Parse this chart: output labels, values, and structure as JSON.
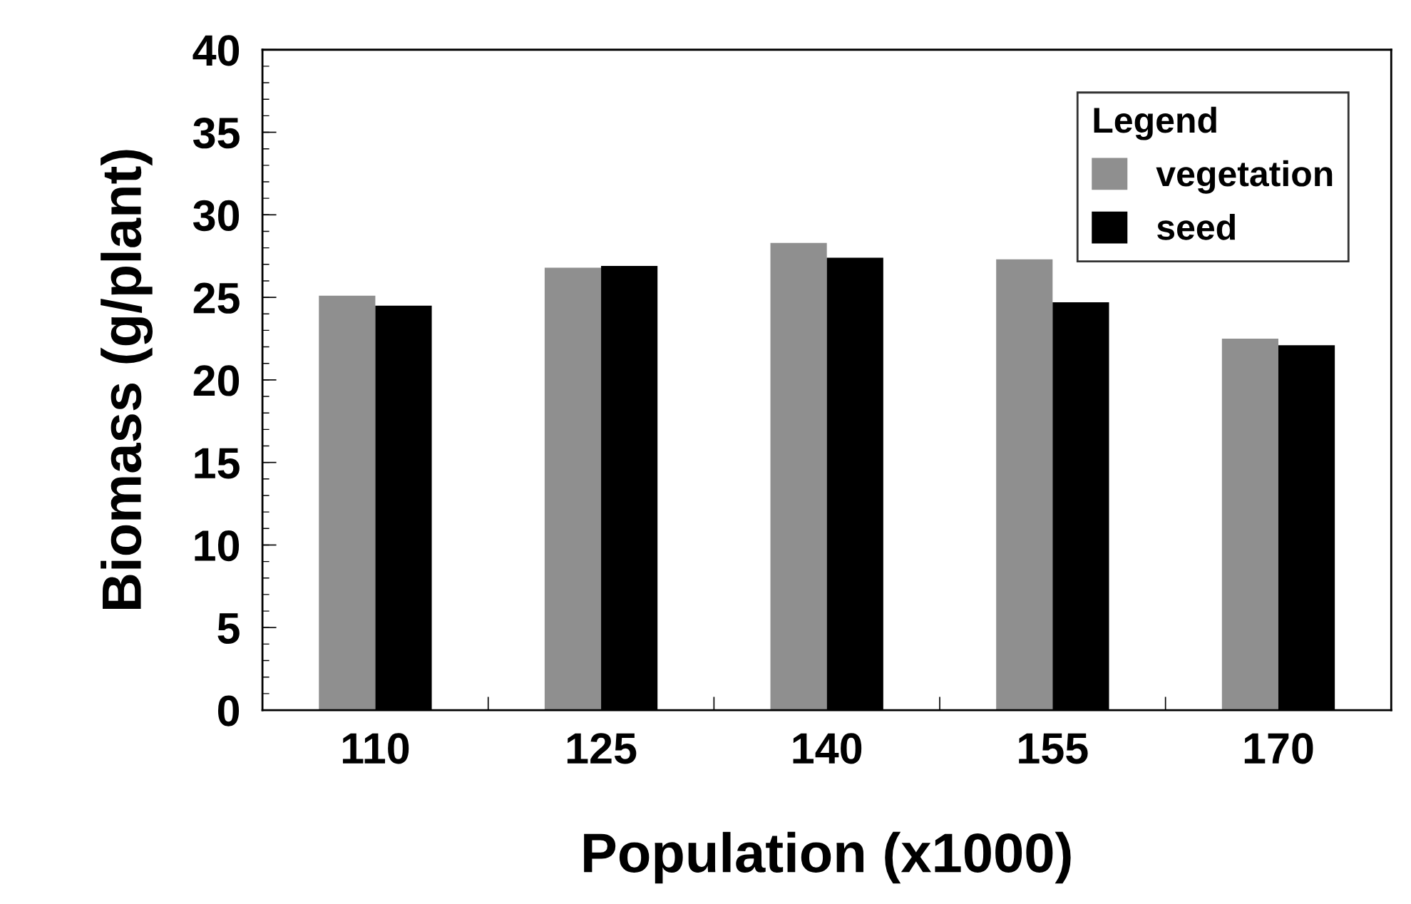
{
  "chart_data": {
    "type": "bar",
    "xlabel": "Population (x1000)",
    "ylabel": "Biomass (g/plant)",
    "categories": [
      "110",
      "125",
      "140",
      "155",
      "170"
    ],
    "series": [
      {
        "name": "vegetation",
        "color": "#8f8f8f",
        "values": [
          25.1,
          26.8,
          28.3,
          27.3,
          22.5
        ]
      },
      {
        "name": "seed",
        "color": "#000000",
        "values": [
          24.5,
          26.9,
          27.4,
          24.7,
          22.1
        ]
      }
    ],
    "ylim": [
      0,
      40
    ],
    "yticks": [
      0,
      5,
      10,
      15,
      20,
      25,
      30,
      35,
      40
    ],
    "legend": "top right",
    "legend_title": "Legend",
    "grid": false
  }
}
